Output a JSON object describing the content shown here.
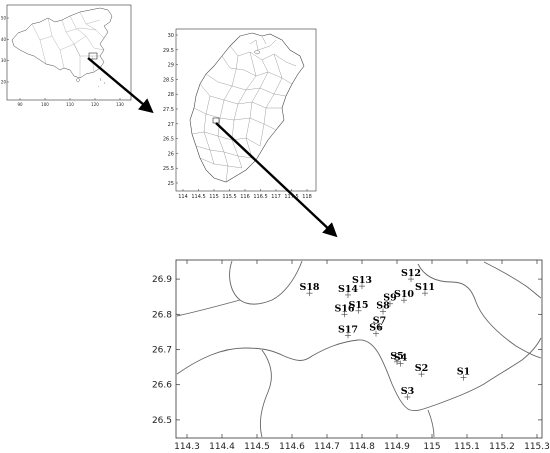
{
  "maps": {
    "overview": {
      "x_ticks": [
        "90",
        "100",
        "110",
        "120",
        "130"
      ],
      "y_ticks": [
        "50",
        "40",
        "30",
        "20"
      ]
    },
    "province": {
      "x_ticks": [
        "114",
        "114.5",
        "115",
        "115.5",
        "116",
        "116.5",
        "117",
        "117.5",
        "118"
      ],
      "y_ticks": [
        "30",
        "29.5",
        "29",
        "28.5",
        "28",
        "27.5",
        "27",
        "26.5",
        "26",
        "25.5",
        "25"
      ]
    },
    "detail": {
      "x_ticks": [
        "114.3",
        "114.4",
        "114.5",
        "114.6",
        "114.7",
        "114.8",
        "114.9",
        "115",
        "115.1",
        "115.2",
        "115.3"
      ],
      "y_ticks": [
        "26.9",
        "26.8",
        "26.7",
        "26.6",
        "26.5"
      ]
    }
  },
  "chart_data": {
    "type": "scatter",
    "xlim": [
      114.3,
      115.3
    ],
    "ylim": [
      26.45,
      26.95
    ],
    "series": [
      {
        "points": [
          {
            "label": "S1",
            "x": 115.09,
            "y": 26.62
          },
          {
            "label": "S2",
            "x": 114.97,
            "y": 26.63
          },
          {
            "label": "S3",
            "x": 114.93,
            "y": 26.565
          },
          {
            "label": "S4",
            "x": 114.91,
            "y": 26.66
          },
          {
            "label": "S5",
            "x": 114.9,
            "y": 26.665
          },
          {
            "label": "S6",
            "x": 114.84,
            "y": 26.745
          },
          {
            "label": "S7",
            "x": 114.85,
            "y": 26.765
          },
          {
            "label": "S8",
            "x": 114.86,
            "y": 26.808
          },
          {
            "label": "S9",
            "x": 114.88,
            "y": 26.83
          },
          {
            "label": "S10",
            "x": 114.92,
            "y": 26.84
          },
          {
            "label": "S11",
            "x": 114.98,
            "y": 26.86
          },
          {
            "label": "S12",
            "x": 114.94,
            "y": 26.9
          },
          {
            "label": "S13",
            "x": 114.8,
            "y": 26.88
          },
          {
            "label": "S14",
            "x": 114.76,
            "y": 26.855
          },
          {
            "label": "S15",
            "x": 114.79,
            "y": 26.81
          },
          {
            "label": "S16",
            "x": 114.75,
            "y": 26.8
          },
          {
            "label": "S17",
            "x": 114.76,
            "y": 26.74
          },
          {
            "label": "S18",
            "x": 114.65,
            "y": 26.86
          }
        ]
      }
    ]
  }
}
